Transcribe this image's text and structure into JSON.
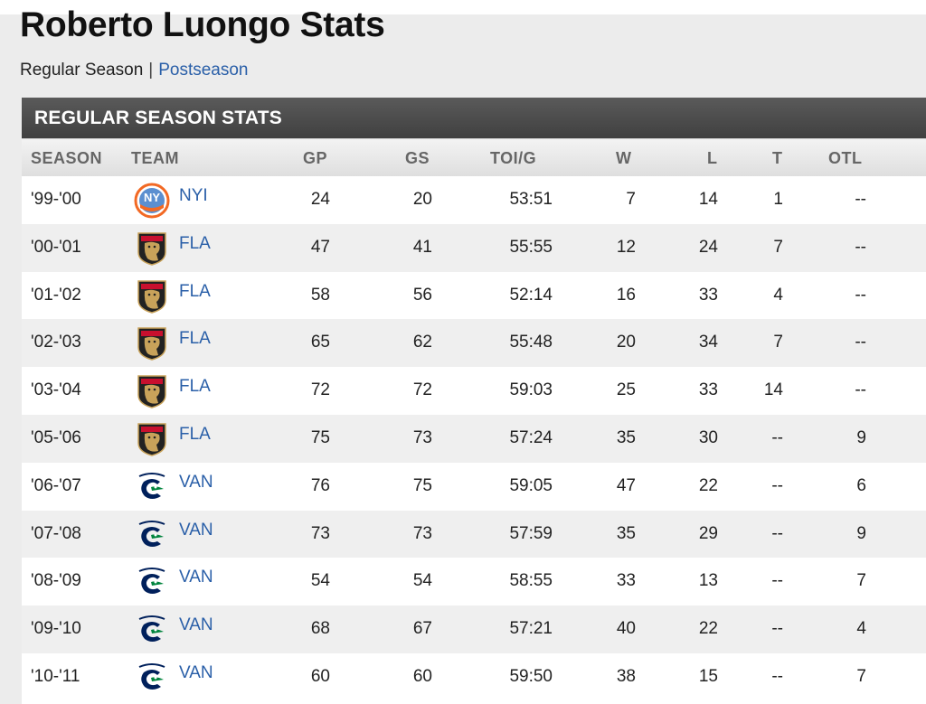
{
  "page": {
    "title": "Roberto Luongo Stats",
    "subnav": {
      "current": "Regular Season",
      "separator": "|",
      "link": "Postseason"
    }
  },
  "table": {
    "header": "REGULAR SEASON STATS",
    "columns": [
      "SEASON",
      "TEAM",
      "GP",
      "GS",
      "TOI/G",
      "W",
      "L",
      "T",
      "OTL"
    ],
    "rows": [
      {
        "season": "'99-'00",
        "team": "NYI",
        "logo": "islanders-logo-icon",
        "gp": "24",
        "gs": "20",
        "toi": "53:51",
        "w": "7",
        "l": "14",
        "t": "1",
        "otl": "--"
      },
      {
        "season": "'00-'01",
        "team": "FLA",
        "logo": "panthers-logo-icon",
        "gp": "47",
        "gs": "41",
        "toi": "55:55",
        "w": "12",
        "l": "24",
        "t": "7",
        "otl": "--"
      },
      {
        "season": "'01-'02",
        "team": "FLA",
        "logo": "panthers-logo-icon",
        "gp": "58",
        "gs": "56",
        "toi": "52:14",
        "w": "16",
        "l": "33",
        "t": "4",
        "otl": "--"
      },
      {
        "season": "'02-'03",
        "team": "FLA",
        "logo": "panthers-logo-icon",
        "gp": "65",
        "gs": "62",
        "toi": "55:48",
        "w": "20",
        "l": "34",
        "t": "7",
        "otl": "--"
      },
      {
        "season": "'03-'04",
        "team": "FLA",
        "logo": "panthers-logo-icon",
        "gp": "72",
        "gs": "72",
        "toi": "59:03",
        "w": "25",
        "l": "33",
        "t": "14",
        "otl": "--"
      },
      {
        "season": "'05-'06",
        "team": "FLA",
        "logo": "panthers-logo-icon",
        "gp": "75",
        "gs": "73",
        "toi": "57:24",
        "w": "35",
        "l": "30",
        "t": "--",
        "otl": "9"
      },
      {
        "season": "'06-'07",
        "team": "VAN",
        "logo": "canucks-logo-icon",
        "gp": "76",
        "gs": "75",
        "toi": "59:05",
        "w": "47",
        "l": "22",
        "t": "--",
        "otl": "6"
      },
      {
        "season": "'07-'08",
        "team": "VAN",
        "logo": "canucks-logo-icon",
        "gp": "73",
        "gs": "73",
        "toi": "57:59",
        "w": "35",
        "l": "29",
        "t": "--",
        "otl": "9"
      },
      {
        "season": "'08-'09",
        "team": "VAN",
        "logo": "canucks-logo-icon",
        "gp": "54",
        "gs": "54",
        "toi": "58:55",
        "w": "33",
        "l": "13",
        "t": "--",
        "otl": "7"
      },
      {
        "season": "'09-'10",
        "team": "VAN",
        "logo": "canucks-logo-icon",
        "gp": "68",
        "gs": "67",
        "toi": "57:21",
        "w": "40",
        "l": "22",
        "t": "--",
        "otl": "4"
      },
      {
        "season": "'10-'11",
        "team": "VAN",
        "logo": "canucks-logo-icon",
        "gp": "60",
        "gs": "60",
        "toi": "59:50",
        "w": "38",
        "l": "15",
        "t": "--",
        "otl": "7"
      }
    ]
  },
  "colors": {
    "link": "#2a5fa8",
    "header_bg": "#4a4a4a",
    "islanders": "#f26924",
    "panthers": "#c8102e",
    "canucks": "#00205b"
  }
}
